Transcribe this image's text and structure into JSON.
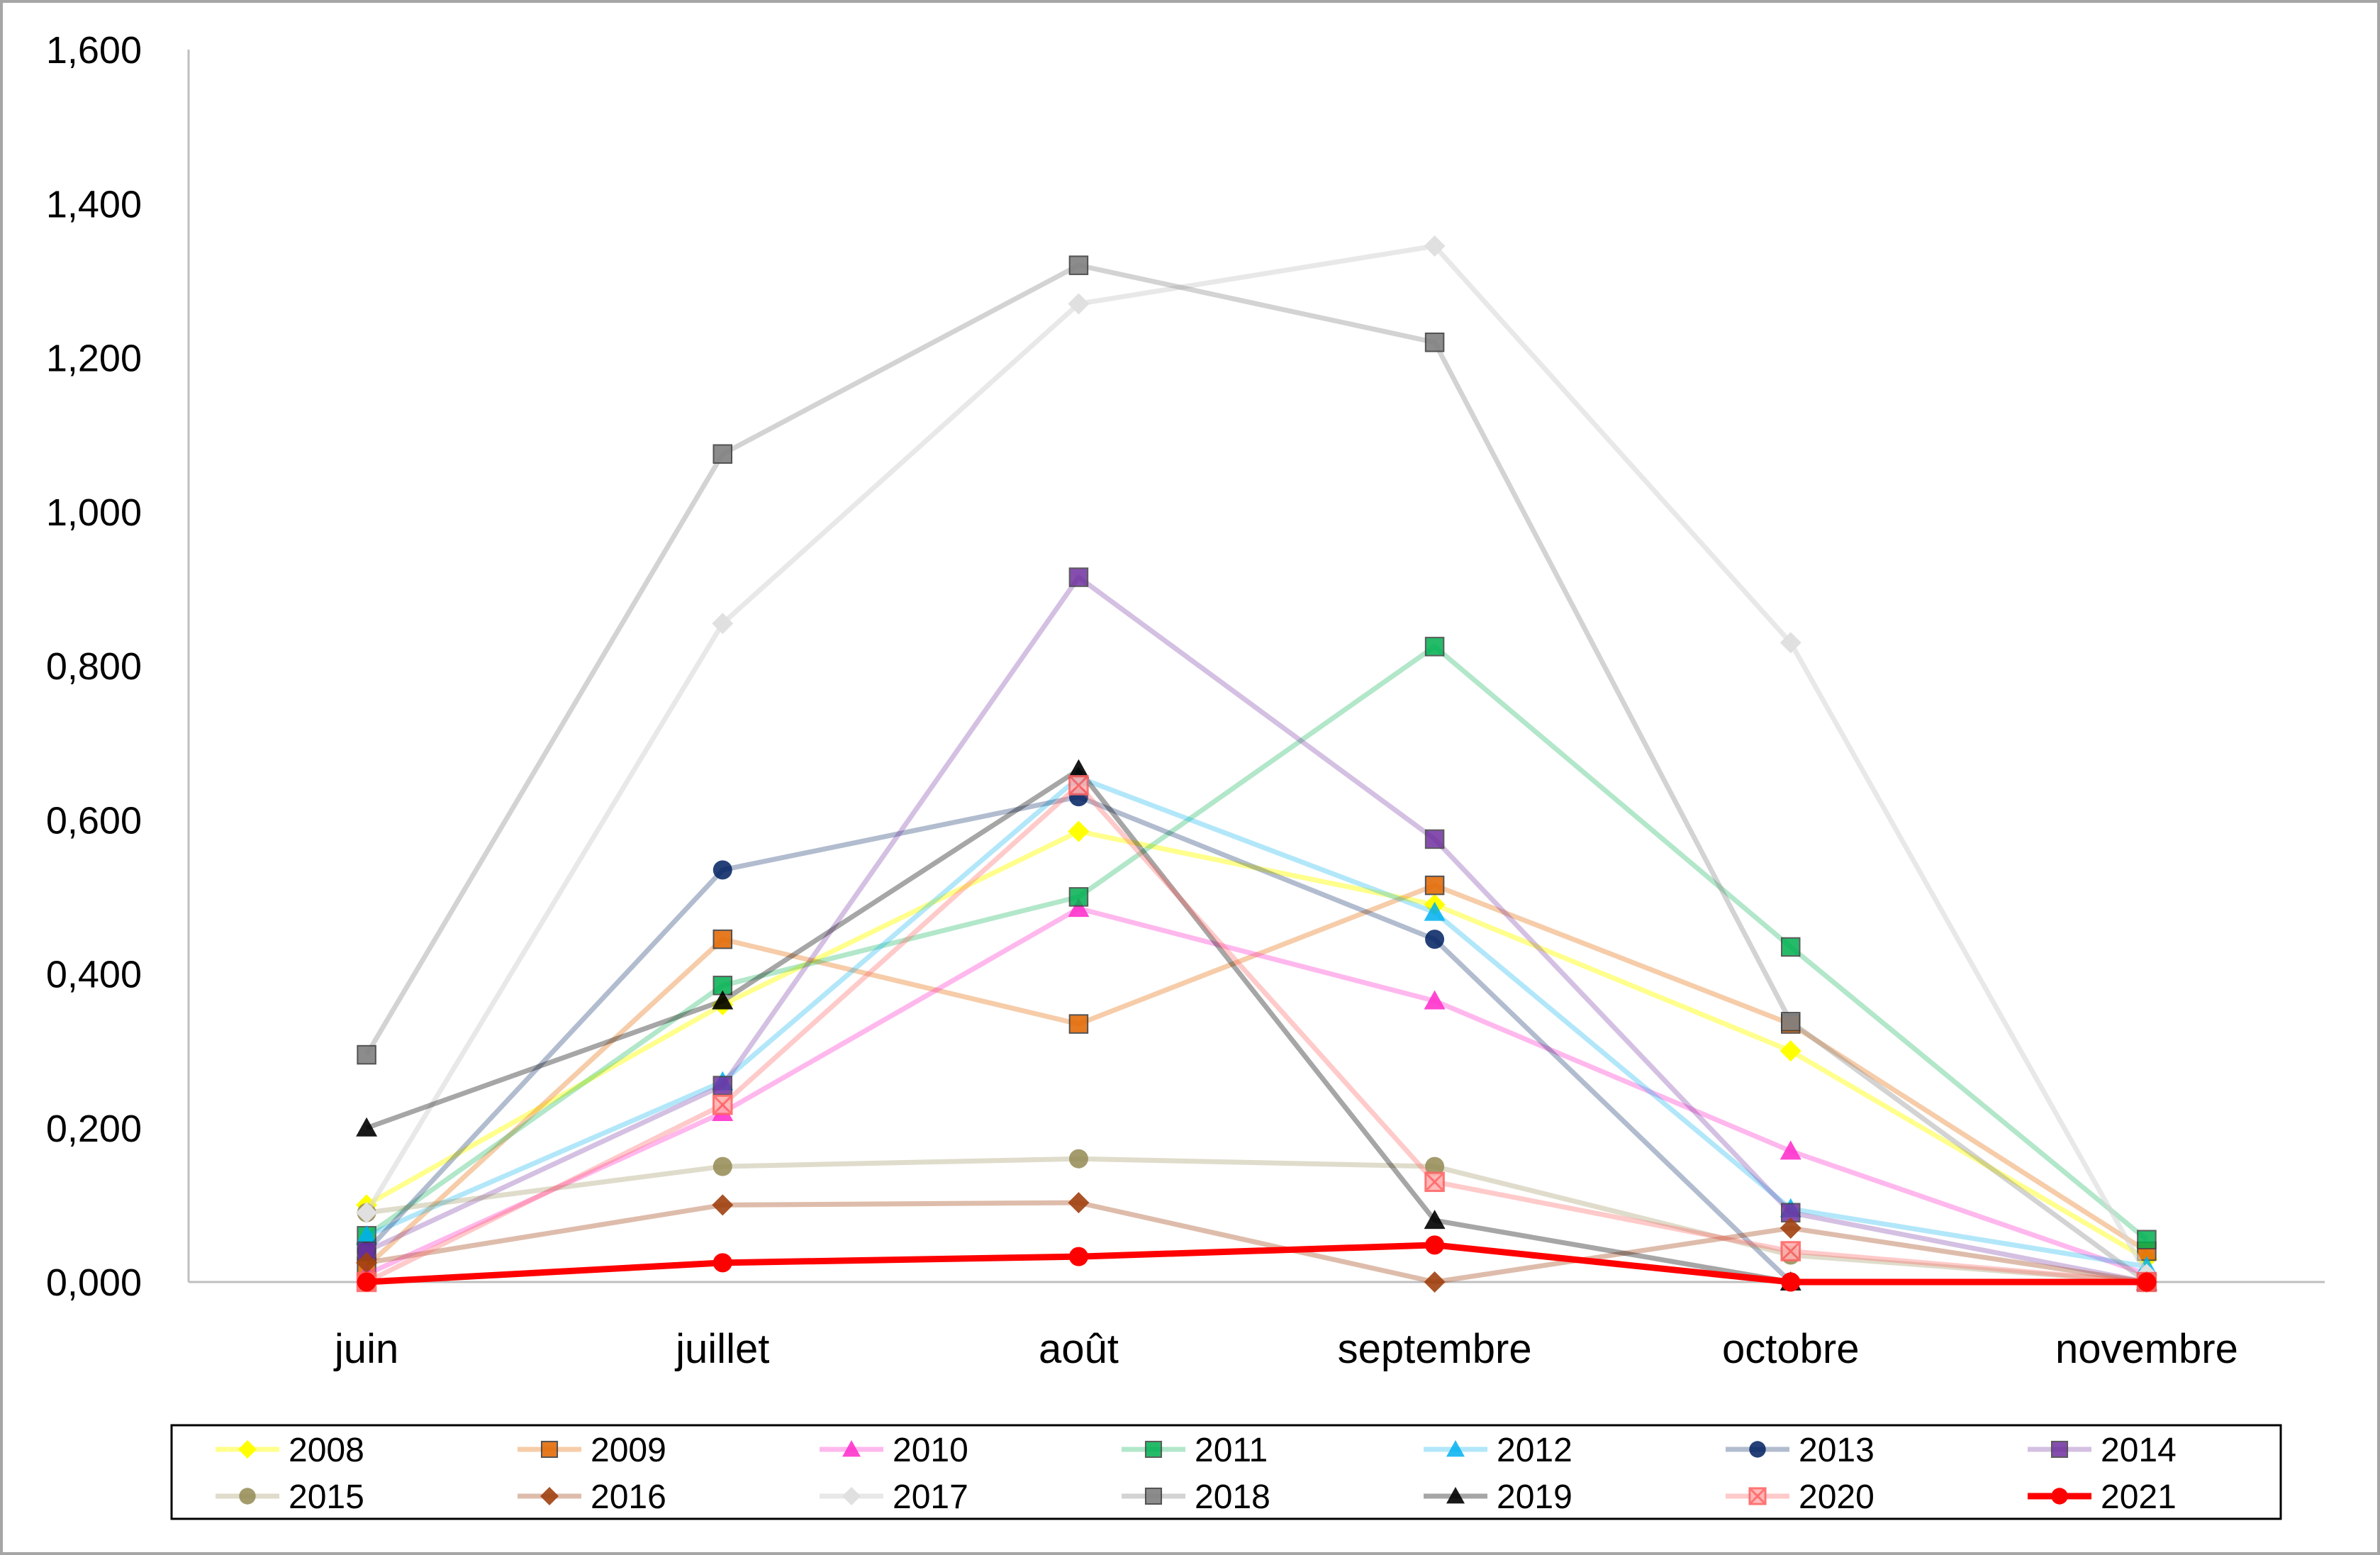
{
  "chart_data": {
    "type": "line",
    "title": "",
    "xlabel": "",
    "ylabel": "",
    "categories": [
      "juin",
      "juillet",
      "août",
      "septembre",
      "octobre",
      "novembre"
    ],
    "ylim": [
      0,
      1.6
    ],
    "yticks": [
      0,
      0.2,
      0.4,
      0.6,
      0.8,
      1.0,
      1.2,
      1.4,
      1.6
    ],
    "ytick_labels": [
      "0,000",
      "0,200",
      "0,400",
      "0,600",
      "0,800",
      "1,000",
      "1,200",
      "1,400",
      "1,600"
    ],
    "grid": false,
    "legend_position": "bottom",
    "series": [
      {
        "name": "2008",
        "values": [
          0.1,
          0.36,
          0.585,
          0.49,
          0.3,
          0.03
        ],
        "color": "#ffff00",
        "marker": "diamond",
        "opacity": 0.45
      },
      {
        "name": "2009",
        "values": [
          0.02,
          0.445,
          0.335,
          0.515,
          0.335,
          0.04
        ],
        "color": "#e46c0a",
        "marker": "square",
        "opacity": 0.35
      },
      {
        "name": "2010",
        "values": [
          0.01,
          0.22,
          0.485,
          0.365,
          0.17,
          0.01
        ],
        "color": "#ff33cc",
        "marker": "triangle",
        "opacity": 0.35
      },
      {
        "name": "2011",
        "values": [
          0.06,
          0.385,
          0.5,
          0.825,
          0.435,
          0.055
        ],
        "color": "#00b050",
        "marker": "square",
        "opacity": 0.3
      },
      {
        "name": "2012",
        "values": [
          0.06,
          0.26,
          0.655,
          0.48,
          0.095,
          0.02
        ],
        "color": "#00b0f0",
        "marker": "triangle",
        "opacity": 0.3
      },
      {
        "name": "2013",
        "values": [
          0.04,
          0.535,
          0.63,
          0.445,
          0.0,
          0.0
        ],
        "color": "#002060",
        "marker": "circle",
        "opacity": 0.3
      },
      {
        "name": "2014",
        "values": [
          0.04,
          0.255,
          0.915,
          0.575,
          0.09,
          0.0
        ],
        "color": "#7030a0",
        "marker": "square",
        "opacity": 0.3
      },
      {
        "name": "2015",
        "values": [
          0.09,
          0.15,
          0.16,
          0.15,
          0.035,
          0.0
        ],
        "color": "#948a54",
        "marker": "circle",
        "opacity": 0.3
      },
      {
        "name": "2016",
        "values": [
          0.025,
          0.1,
          0.103,
          0.0,
          0.07,
          0.0
        ],
        "color": "#a0400f",
        "marker": "diamond",
        "opacity": 0.35
      },
      {
        "name": "2017",
        "values": [
          0.09,
          0.855,
          1.27,
          1.345,
          0.83,
          0.01
        ],
        "color": "#d9d9d9",
        "marker": "diamond",
        "opacity": 0.6
      },
      {
        "name": "2018",
        "values": [
          0.295,
          1.075,
          1.32,
          1.22,
          0.338,
          0.0
        ],
        "color": "#808080",
        "marker": "square",
        "opacity": 0.35
      },
      {
        "name": "2019",
        "values": [
          0.2,
          0.365,
          0.665,
          0.08,
          0.0,
          0.0
        ],
        "color": "#000000",
        "marker": "triangle",
        "opacity": 0.35
      },
      {
        "name": "2020",
        "values": [
          0.0,
          0.23,
          0.645,
          0.13,
          0.04,
          0.0
        ],
        "color": "#ff6666",
        "marker": "xsquare",
        "opacity": 0.35
      },
      {
        "name": "2021",
        "values": [
          0.0,
          0.025,
          0.033,
          0.048,
          0.0,
          0.0
        ],
        "color": "#ff0000",
        "marker": "circle",
        "opacity": 1.0
      }
    ]
  }
}
